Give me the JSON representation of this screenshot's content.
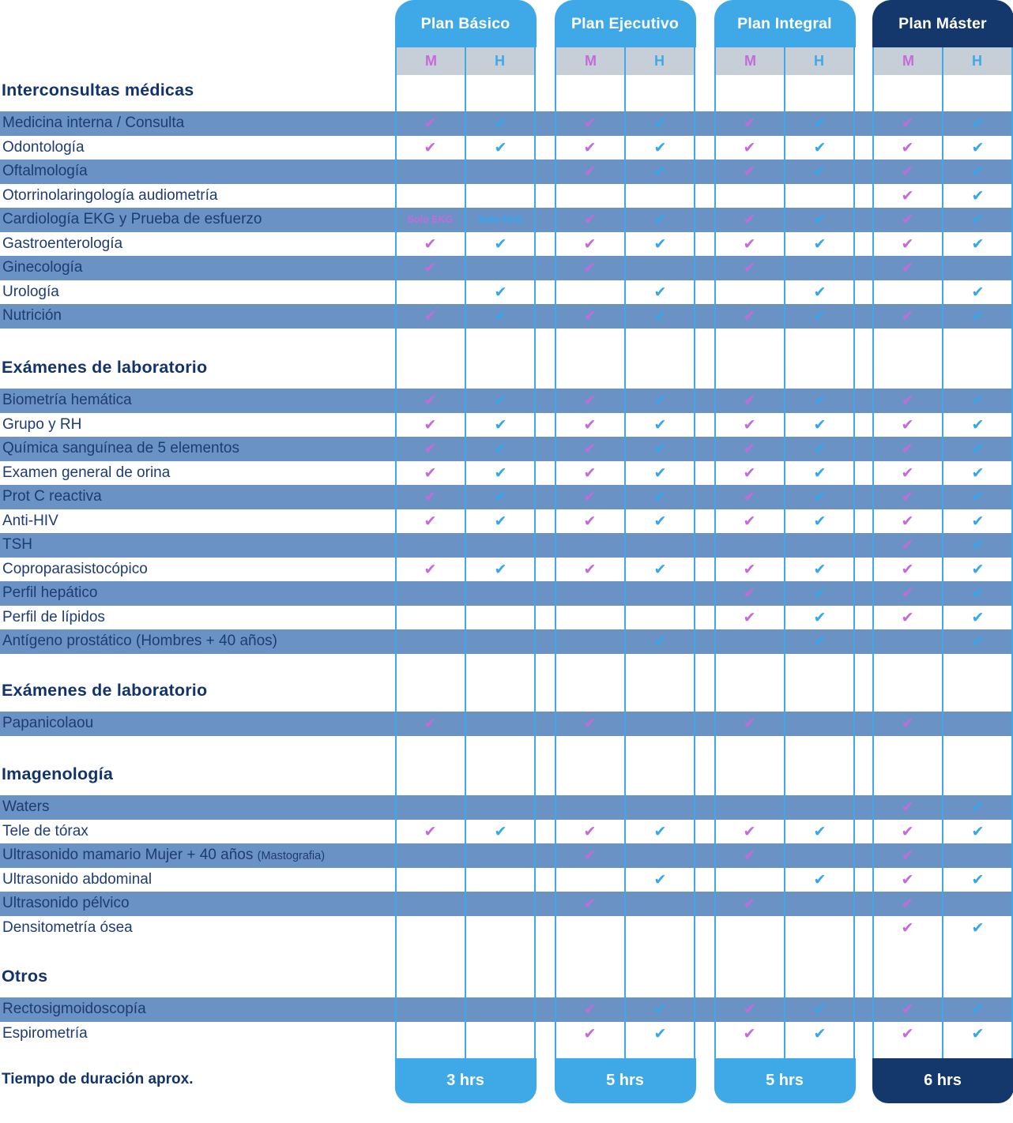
{
  "colors": {
    "accent_blue": "#3FA9E8",
    "navy": "#14386B",
    "navy_text": "#13346B",
    "label_text": "#1E3C74",
    "stripe_blue": "#6B92C4",
    "band_gray": "#C6CED7",
    "check_purple": "#C46BD8",
    "check_blue": "#35A7EC"
  },
  "gender_columns": {
    "m": "M",
    "h": "H"
  },
  "footer_label": "Tiempo de duración aprox.",
  "plans": [
    {
      "name": "Plan Básico",
      "duration": "3 hrs",
      "theme": "light"
    },
    {
      "name": "Plan Ejecutivo",
      "duration": "5 hrs",
      "theme": "light"
    },
    {
      "name": "Plan Integral",
      "duration": "5 hrs",
      "theme": "light"
    },
    {
      "name": "Plan Máster",
      "duration": "6 hrs",
      "theme": "dark"
    }
  ],
  "sections": [
    {
      "title": "Interconsultas médicas",
      "rows": [
        {
          "label": "Medicina interna / Consulta",
          "cells": [
            1,
            1,
            1,
            1,
            1,
            1,
            1,
            1
          ]
        },
        {
          "label": "Odontología",
          "cells": [
            1,
            1,
            1,
            1,
            1,
            1,
            1,
            1
          ]
        },
        {
          "label": "Oftalmología",
          "cells": [
            0,
            0,
            1,
            1,
            1,
            1,
            1,
            1
          ]
        },
        {
          "label": "Otorrinolaringología audiometría",
          "cells": [
            0,
            0,
            0,
            0,
            0,
            0,
            1,
            1
          ]
        },
        {
          "label": "Cardiología EKG y Prueba de esfuerzo",
          "cells": [
            "Solo EKG",
            "Solo EKG",
            1,
            1,
            1,
            1,
            1,
            1
          ]
        },
        {
          "label": "Gastroenterología",
          "cells": [
            1,
            1,
            1,
            1,
            1,
            1,
            1,
            1
          ]
        },
        {
          "label": "Ginecología",
          "cells": [
            1,
            0,
            1,
            0,
            1,
            0,
            1,
            0
          ]
        },
        {
          "label": "Urología",
          "cells": [
            0,
            1,
            0,
            1,
            0,
            1,
            0,
            1
          ]
        },
        {
          "label": "Nutrición",
          "cells": [
            1,
            1,
            1,
            1,
            1,
            1,
            1,
            1
          ]
        }
      ]
    },
    {
      "title": "Exámenes de laboratorio",
      "rows": [
        {
          "label": "Biometría hemática",
          "cells": [
            1,
            1,
            1,
            1,
            1,
            1,
            1,
            1
          ]
        },
        {
          "label": "Grupo y RH",
          "cells": [
            1,
            1,
            1,
            1,
            1,
            1,
            1,
            1
          ]
        },
        {
          "label": "Química sanguínea de 5 elementos",
          "cells": [
            1,
            1,
            1,
            1,
            1,
            1,
            1,
            1
          ]
        },
        {
          "label": "Examen general de orina",
          "cells": [
            1,
            1,
            1,
            1,
            1,
            1,
            1,
            1
          ]
        },
        {
          "label": "Prot C reactiva",
          "cells": [
            1,
            1,
            1,
            1,
            1,
            1,
            1,
            1
          ]
        },
        {
          "label": "Anti-HIV",
          "cells": [
            1,
            1,
            1,
            1,
            1,
            1,
            1,
            1
          ]
        },
        {
          "label": "TSH",
          "cells": [
            0,
            0,
            0,
            0,
            0,
            0,
            1,
            1
          ]
        },
        {
          "label": "Coproparasistocópico",
          "cells": [
            1,
            1,
            1,
            1,
            1,
            1,
            1,
            1
          ]
        },
        {
          "label": "Perfil hepático",
          "cells": [
            0,
            0,
            0,
            0,
            1,
            1,
            1,
            1
          ]
        },
        {
          "label": "Perfil de lípidos",
          "cells": [
            0,
            0,
            0,
            0,
            1,
            1,
            1,
            1
          ]
        },
        {
          "label": "Antígeno prostático (Hombres + 40 años)",
          "cells": [
            0,
            0,
            0,
            1,
            0,
            1,
            0,
            1
          ]
        }
      ]
    },
    {
      "title": "Exámenes de laboratorio",
      "rows": [
        {
          "label": "Papanicolaou",
          "cells": [
            1,
            0,
            1,
            0,
            1,
            0,
            1,
            0
          ]
        }
      ]
    },
    {
      "title": "Imagenología",
      "rows": [
        {
          "label": "Waters",
          "cells": [
            0,
            0,
            0,
            0,
            0,
            0,
            1,
            1
          ]
        },
        {
          "label": "Tele de tórax",
          "cells": [
            1,
            1,
            1,
            1,
            1,
            1,
            1,
            1
          ]
        },
        {
          "label": "Ultrasonido mamario Mujer + 40 años",
          "suffix": "(Mastografia)",
          "cells": [
            0,
            0,
            1,
            0,
            1,
            0,
            1,
            0
          ]
        },
        {
          "label": "Ultrasonido abdominal",
          "cells": [
            0,
            0,
            0,
            1,
            0,
            1,
            1,
            1
          ]
        },
        {
          "label": "Ultrasonido pélvico",
          "cells": [
            0,
            0,
            1,
            0,
            1,
            0,
            1,
            0
          ]
        },
        {
          "label": "Densitometría ósea",
          "cells": [
            0,
            0,
            0,
            0,
            0,
            0,
            1,
            1
          ]
        }
      ]
    },
    {
      "title": "Otros",
      "rows": [
        {
          "label": "Rectosigmoidoscopía",
          "cells": [
            0,
            0,
            1,
            1,
            1,
            1,
            1,
            1
          ]
        },
        {
          "label": "Espirometría",
          "cells": [
            0,
            0,
            1,
            1,
            1,
            1,
            1,
            1
          ]
        }
      ]
    }
  ]
}
